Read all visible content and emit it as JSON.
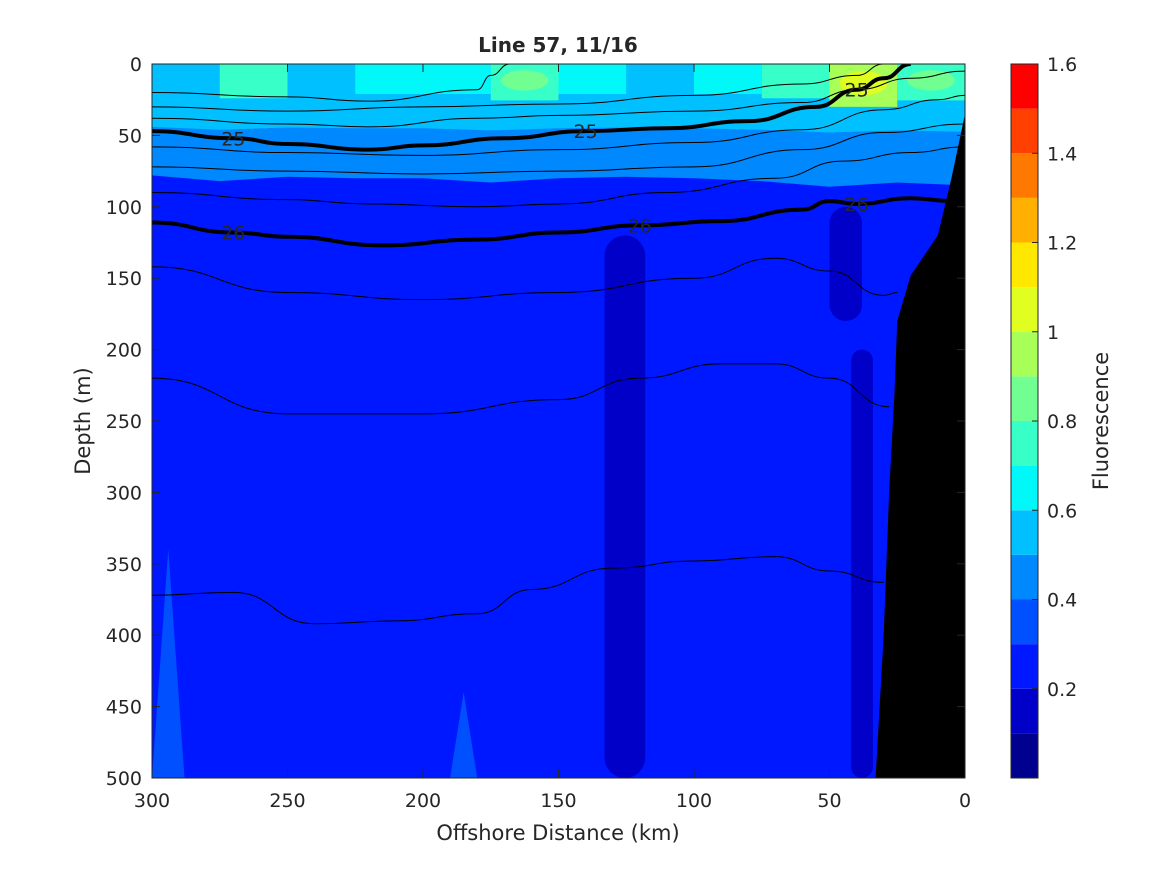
{
  "chart_data": {
    "type": "heatmap",
    "title": "Line 57, 11/16",
    "xlabel": "Offshore Distance (km)",
    "ylabel": "Depth (m)",
    "xlim": [
      300,
      0
    ],
    "ylim": [
      500,
      0
    ],
    "x_reversed": true,
    "y_reversed": true,
    "xticks": [
      300,
      250,
      200,
      150,
      100,
      50,
      0
    ],
    "yticks": [
      0,
      50,
      100,
      150,
      200,
      250,
      300,
      350,
      400,
      450,
      500
    ],
    "colorbar": {
      "label": "Fluorescence",
      "range": [
        0,
        1.6
      ],
      "levels": [
        0,
        0.1,
        0.2,
        0.3,
        0.4,
        0.5,
        0.6,
        0.7,
        0.8,
        0.9,
        1.0,
        1.1,
        1.2,
        1.3,
        1.4,
        1.5,
        1.6
      ],
      "colors": [
        "#00008f",
        "#0000c8",
        "#0018ff",
        "#0050ff",
        "#0088ff",
        "#00c0ff",
        "#00f8f8",
        "#38ffc8",
        "#70ff90",
        "#a8ff58",
        "#e0ff20",
        "#ffe800",
        "#ffb000",
        "#ff7800",
        "#ff4000",
        "#ff0000",
        "#b00000"
      ],
      "ticks": [
        0.2,
        0.4,
        0.6,
        0.8,
        1,
        1.2,
        1.4,
        1.6
      ]
    },
    "background_value": 0.2,
    "surface_layer": [
      {
        "x": 300,
        "value": 0.5
      },
      {
        "x": 275,
        "value": 0.7
      },
      {
        "x": 250,
        "value": 0.55
      },
      {
        "x": 225,
        "value": 0.6
      },
      {
        "x": 200,
        "value": 0.6
      },
      {
        "x": 175,
        "value": 0.75
      },
      {
        "x": 150,
        "value": 0.6
      },
      {
        "x": 125,
        "value": 0.55
      },
      {
        "x": 100,
        "value": 0.6
      },
      {
        "x": 75,
        "value": 0.7
      },
      {
        "x": 50,
        "value": 0.9
      },
      {
        "x": 25,
        "value": 0.75
      },
      {
        "x": 0,
        "value": 0.85
      }
    ],
    "low_regions": [
      {
        "value": 0.1,
        "x_range": [
          133,
          118
        ],
        "depth_range": [
          120,
          500
        ]
      },
      {
        "value": 0.1,
        "x_range": [
          50,
          38
        ],
        "depth_range": [
          100,
          180
        ]
      },
      {
        "value": 0.1,
        "x_range": [
          42,
          34
        ],
        "depth_range": [
          200,
          500
        ]
      }
    ],
    "high_regions": [
      {
        "value": 0.3,
        "x_range": [
          300,
          288
        ],
        "depth_range": [
          340,
          500
        ]
      },
      {
        "value": 0.3,
        "x_range": [
          190,
          180
        ],
        "depth_range": [
          440,
          500
        ]
      }
    ],
    "bathymetry": [
      {
        "x": 33,
        "depth": 500
      },
      {
        "x": 30,
        "depth": 400
      },
      {
        "x": 28,
        "depth": 300
      },
      {
        "x": 26,
        "depth": 230
      },
      {
        "x": 25,
        "depth": 180
      },
      {
        "x": 20,
        "depth": 148
      },
      {
        "x": 10,
        "depth": 120
      },
      {
        "x": 5,
        "depth": 80
      },
      {
        "x": 0,
        "depth": 35
      }
    ],
    "density_contours": [
      {
        "label": "",
        "bold": false,
        "points": [
          [
            300,
            20
          ],
          [
            250,
            23
          ],
          [
            220,
            26
          ],
          [
            180,
            18
          ],
          [
            175,
            8
          ],
          [
            168,
            0
          ]
        ]
      },
      {
        "label": "",
        "bold": false,
        "points": [
          [
            300,
            30
          ],
          [
            250,
            33
          ],
          [
            200,
            30
          ],
          [
            150,
            28
          ],
          [
            100,
            22
          ],
          [
            60,
            14
          ],
          [
            40,
            8
          ],
          [
            30,
            0
          ]
        ]
      },
      {
        "label": "",
        "bold": false,
        "points": [
          [
            300,
            38
          ],
          [
            250,
            42
          ],
          [
            220,
            44
          ],
          [
            180,
            38
          ],
          [
            150,
            36
          ],
          [
            100,
            33
          ],
          [
            60,
            27
          ],
          [
            40,
            18
          ],
          [
            20,
            10
          ],
          [
            0,
            5
          ]
        ]
      },
      {
        "label": "25",
        "bold": true,
        "points": [
          [
            300,
            47
          ],
          [
            270,
            52
          ],
          [
            250,
            56
          ],
          [
            220,
            60
          ],
          [
            200,
            57
          ],
          [
            170,
            52
          ],
          [
            140,
            47
          ],
          [
            110,
            45
          ],
          [
            80,
            40
          ],
          [
            55,
            30
          ],
          [
            40,
            18
          ],
          [
            30,
            10
          ],
          [
            20,
            0
          ]
        ]
      },
      {
        "label": "",
        "bold": false,
        "points": [
          [
            300,
            58
          ],
          [
            250,
            62
          ],
          [
            200,
            64
          ],
          [
            150,
            60
          ],
          [
            100,
            55
          ],
          [
            60,
            46
          ],
          [
            30,
            32
          ],
          [
            10,
            25
          ],
          [
            0,
            22
          ]
        ]
      },
      {
        "label": "",
        "bold": false,
        "points": [
          [
            300,
            72
          ],
          [
            250,
            75
          ],
          [
            200,
            77
          ],
          [
            150,
            75
          ],
          [
            100,
            72
          ],
          [
            60,
            60
          ],
          [
            30,
            48
          ],
          [
            0,
            42
          ]
        ]
      },
      {
        "label": "",
        "bold": false,
        "points": [
          [
            300,
            90
          ],
          [
            250,
            95
          ],
          [
            220,
            98
          ],
          [
            180,
            100
          ],
          [
            150,
            98
          ],
          [
            110,
            90
          ],
          [
            70,
            80
          ],
          [
            45,
            68
          ],
          [
            20,
            62
          ],
          [
            0,
            58
          ]
        ]
      },
      {
        "label": "26",
        "bold": true,
        "points": [
          [
            300,
            111
          ],
          [
            270,
            118
          ],
          [
            250,
            121
          ],
          [
            215,
            127
          ],
          [
            180,
            123
          ],
          [
            150,
            118
          ],
          [
            120,
            113
          ],
          [
            90,
            110
          ],
          [
            60,
            102
          ],
          [
            50,
            96
          ],
          [
            40,
            98
          ],
          [
            20,
            94
          ],
          [
            5,
            96
          ]
        ]
      },
      {
        "label": "",
        "bold": false,
        "points": [
          [
            300,
            142
          ],
          [
            250,
            160
          ],
          [
            200,
            165
          ],
          [
            150,
            160
          ],
          [
            100,
            150
          ],
          [
            70,
            136
          ],
          [
            50,
            145
          ],
          [
            30,
            162
          ],
          [
            25,
            160
          ]
        ]
      },
      {
        "label": "",
        "bold": false,
        "points": [
          [
            300,
            220
          ],
          [
            250,
            245
          ],
          [
            200,
            245
          ],
          [
            150,
            235
          ],
          [
            120,
            220
          ],
          [
            90,
            210
          ],
          [
            70,
            210
          ],
          [
            50,
            220
          ],
          [
            28,
            240
          ]
        ]
      },
      {
        "label": "",
        "bold": false,
        "points": [
          [
            300,
            372
          ],
          [
            270,
            370
          ],
          [
            240,
            392
          ],
          [
            210,
            390
          ],
          [
            180,
            385
          ],
          [
            160,
            368
          ],
          [
            130,
            353
          ],
          [
            100,
            348
          ],
          [
            70,
            345
          ],
          [
            50,
            355
          ],
          [
            30,
            363
          ]
        ]
      }
    ]
  }
}
